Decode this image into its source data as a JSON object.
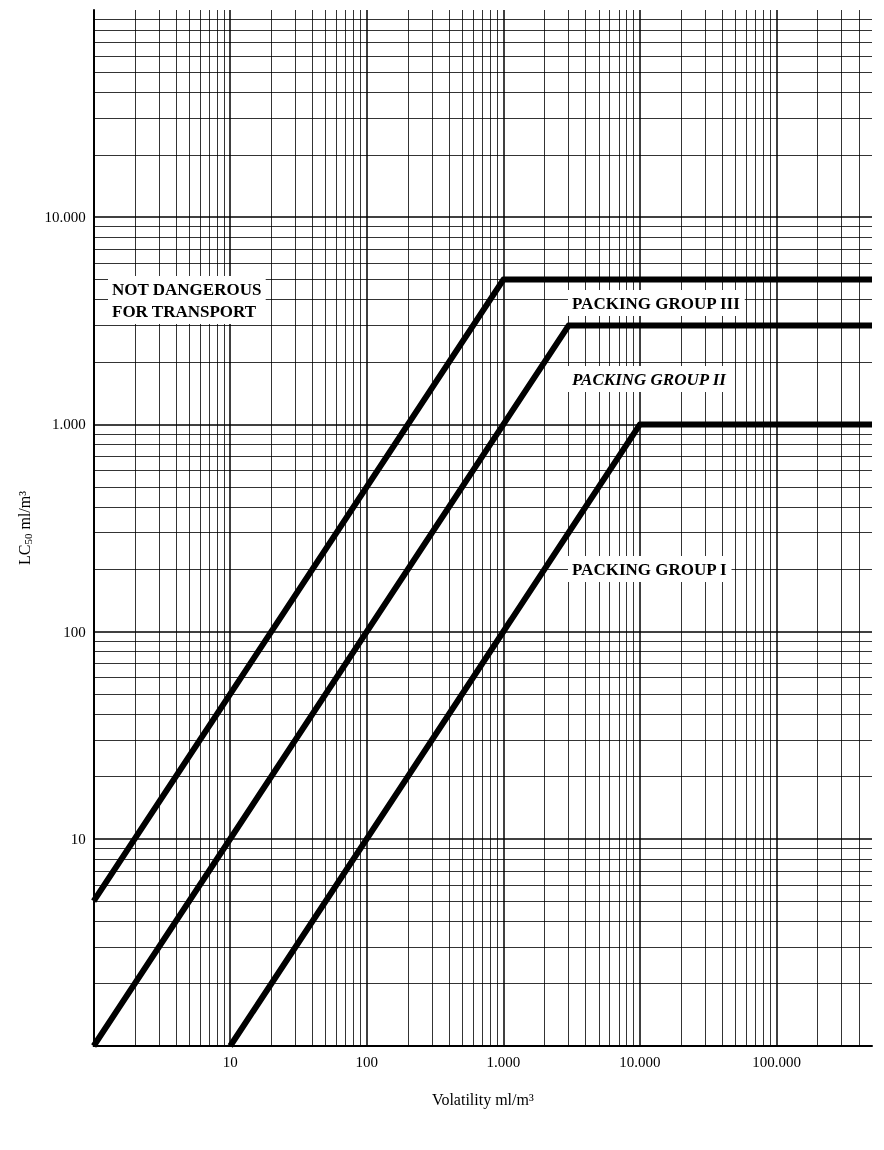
{
  "chart_data": {
    "type": "line",
    "xlabel": "Volatility ml/m³",
    "ylabel": "LC$_{50}$ ml/m³",
    "log": "xy",
    "grid": true,
    "marker": "none",
    "line_style": "solid",
    "xlim": [
      1,
      500000
    ],
    "ylim": [
      1,
      100000
    ],
    "xticks": [
      10,
      100,
      {
        "value": 1000,
        "label": "1.000"
      },
      {
        "value": 10000,
        "label": "10.000"
      },
      {
        "value": 100000,
        "label": "100.000"
      }
    ],
    "yticks": [
      10,
      100,
      {
        "value": 1000,
        "label": "1.000"
      },
      {
        "value": 10000,
        "label": "10.000"
      }
    ],
    "series": [
      {
        "color": "#000000",
        "x": [
          1,
          1000,
          500000
        ],
        "values": [
          5,
          5000,
          5000
        ]
      },
      {
        "color": "#000000",
        "x": [
          1,
          3000,
          500000
        ],
        "values": [
          1,
          3000,
          3000
        ]
      },
      {
        "color": "#000000",
        "x": [
          10,
          10000,
          500000
        ],
        "values": [
          1,
          1000,
          1000
        ]
      }
    ],
    "annotations": [
      "NOT DANGEROUS\nFOR TRANSPORT",
      "PACKING GROUP III",
      "PACKING GROUP II",
      "PACKING GROUP I"
    ]
  }
}
